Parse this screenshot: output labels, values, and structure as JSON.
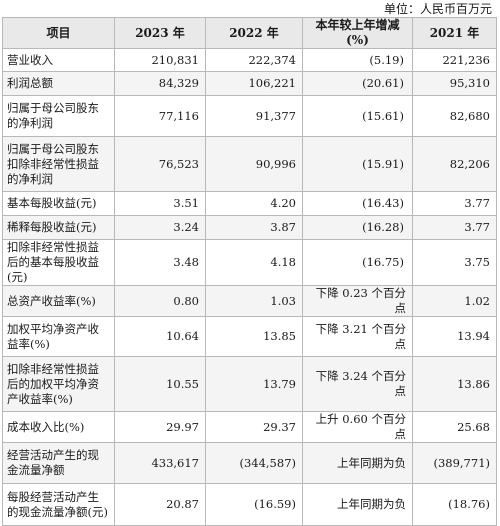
{
  "unit_label": "单位：人民币百万元",
  "headers": {
    "item": "项目",
    "y2023": "2023 年",
    "y2022": "2022 年",
    "change": "本年较上年增减(%)",
    "y2021": "2021 年"
  },
  "rows": [
    {
      "label": "营业收入",
      "y2023": "210,831",
      "y2022": "222,374",
      "change": "(5.19)",
      "y2021": "221,236"
    },
    {
      "label": "利润总额",
      "y2023": "84,329",
      "y2022": "106,221",
      "change": "(20.61)",
      "y2021": "95,310"
    },
    {
      "label": "归属于母公司股东的净利润",
      "y2023": "77,116",
      "y2022": "91,377",
      "change": "(15.61)",
      "y2021": "82,680"
    },
    {
      "label": "归属于母公司股东扣除非经常性损益的净利润",
      "y2023": "76,523",
      "y2022": "90,996",
      "change": "(15.91)",
      "y2021": "82,206"
    },
    {
      "label": "基本每股收益(元)",
      "y2023": "3.51",
      "y2022": "4.20",
      "change": "(16.43)",
      "y2021": "3.77"
    },
    {
      "label": "稀释每股收益(元)",
      "y2023": "3.24",
      "y2022": "3.87",
      "change": "(16.28)",
      "y2021": "3.77"
    },
    {
      "label": "扣除非经常性损益后的基本每股收益(元)",
      "y2023": "3.48",
      "y2022": "4.18",
      "change": "(16.75)",
      "y2021": "3.75"
    },
    {
      "label": "总资产收益率(%)",
      "y2023": "0.80",
      "y2022": "1.03",
      "change": "下降 0.23 个百分点",
      "y2021": "1.02"
    },
    {
      "label": "加权平均净资产收益率(%)",
      "y2023": "10.64",
      "y2022": "13.85",
      "change": "下降 3.21 个百分点",
      "y2021": "13.94"
    },
    {
      "label": "扣除非经常性损益后的加权平均净资产收益率(%)",
      "y2023": "10.55",
      "y2022": "13.79",
      "change": "下降 3.24 个百分点",
      "y2021": "13.86"
    },
    {
      "label": "成本收入比(%)",
      "y2023": "29.97",
      "y2022": "29.37",
      "change": "上升 0.60 个百分点",
      "y2021": "25.68"
    },
    {
      "label": "经营活动产生的现金流量净额",
      "y2023": "433,617",
      "y2022": "(344,587)",
      "change": "上年同期为负",
      "y2021": "(389,771)"
    },
    {
      "label": "每股经营活动产生的现金流量净额(元)",
      "y2023": "20.87",
      "y2022": "(16.59)",
      "change": "上年同期为负",
      "y2021": "(18.76)"
    }
  ]
}
